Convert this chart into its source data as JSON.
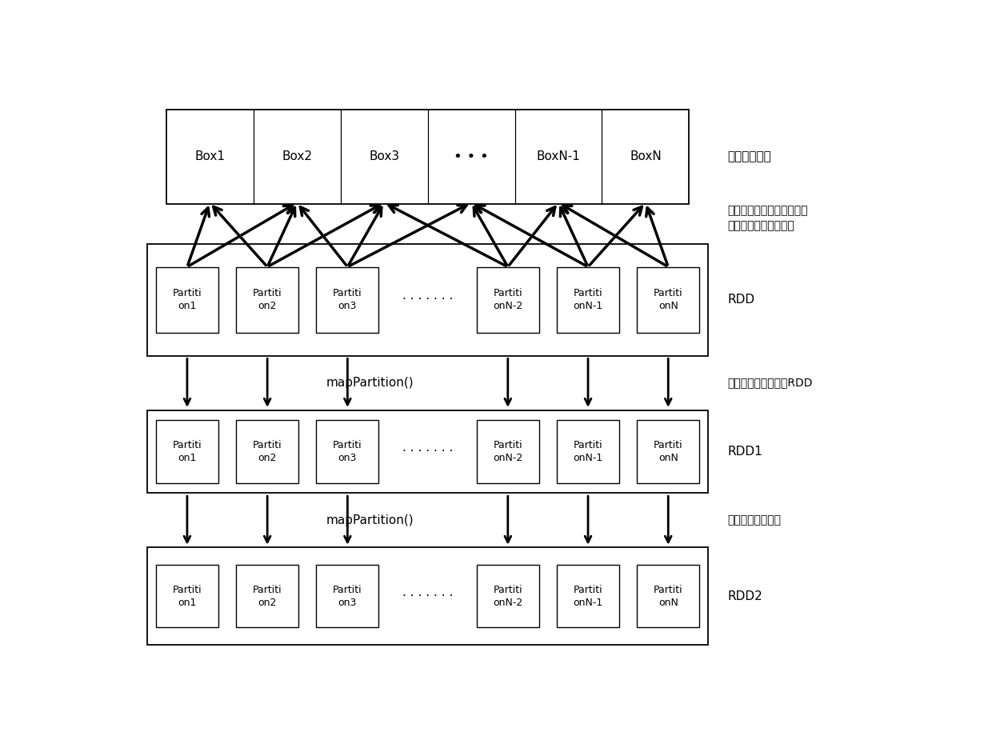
{
  "bg_color": "#ffffff",
  "box_labels": [
    "Box1",
    "Box2",
    "Box3",
    "...",
    "BoxN-1",
    "BoxN"
  ],
  "part_labels": [
    "Partiti\non1",
    "Partiti\non2",
    "Partiti\non3",
    "........",
    "Partiti\nonN-2",
    "Partiti\nonN-1",
    "Partiti\nonN"
  ],
  "label_broadcast": "广播盒子数组",
  "label_neighbor": "分别与序号想对应的盒子及\n其前后的盒子计算邻居",
  "label_rdd": "RDD",
  "label_new_rdd": "计算邻居后得到新的RDD",
  "label_rdd1": "RDD1",
  "label_core_dist": "计算得到核心距离",
  "label_rdd2": "RDD2",
  "label_map1": "mapPartition()",
  "label_map2": "mapPartition()",
  "figure_width": 12.4,
  "figure_height": 9.3
}
